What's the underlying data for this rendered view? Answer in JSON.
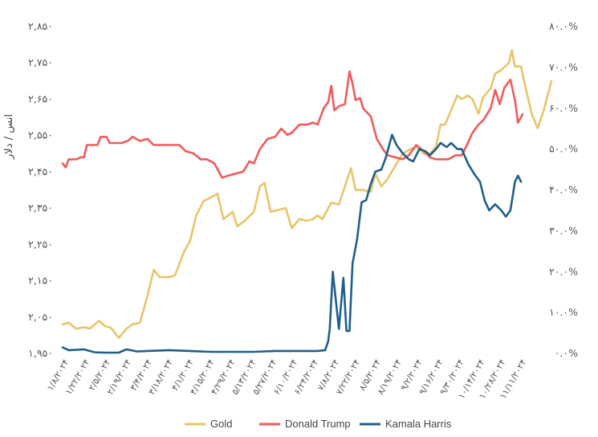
{
  "chart_data": {
    "type": "line",
    "ylabel": "انس / دلار",
    "y_left_ticks": [
      "۱,۹۵۰",
      "۲,۰۵۰",
      "۲,۱۵۰",
      "۲,۲۵۰",
      "۲,۳۵۰",
      "۲,۴۵۰",
      "۲,۵۵۰",
      "۲,۶۵۰",
      "۲,۷۵۰",
      "۲,۸۵۰"
    ],
    "y_left_range": [
      1950,
      2850
    ],
    "y_right_ticks": [
      "۰.۰%",
      "۱۰.۰%",
      "۲۰.۰%",
      "۳۰.۰%",
      "۴۰.۰%",
      "۵۰.۰%",
      "۶۰.۰%",
      "۷۰.۰%",
      "۸۰.۰%"
    ],
    "y_right_range": [
      0,
      80
    ],
    "x_ticks": [
      "۱/۸/۲۰۲۴",
      "۱/۲۲/۲۰۲۴",
      "۲/۵/۲۰۲۴",
      "۲/۱۹/۲۰۲۴",
      "۳/۴/۲۰۲۴",
      "۳/۱۸/۲۰۲۴",
      "۴/۱/۲۰۲۴",
      "۴/۱۵/۲۰۲۴",
      "۴/۲۹/۲۰۲۴",
      "۵/۱۳/۲۰۲۴",
      "۵/۲۷/۲۰۲۴",
      "۶/۱۰/۲۰۲۴",
      "۶/۲۴/۲۰۲۴",
      "۷/۸/۲۰۲۴",
      "۷/۲۲/۲۰۲۴",
      "۸/۵/۲۰۲۴",
      "۸/۱۹/۲۰۲۴",
      "۹/۲/۲۰۲۴",
      "۹/۱۶/۲۰۲۴",
      "۹/۳۰/۲۰۲۴",
      "۱۰/۱۴/۲۰۲۴",
      "۱۰/۲۸/۲۰۲۴",
      "۱۱/۱۱/۲۰۲۴"
    ],
    "x_range": [
      "2024-01-08",
      "2024-11-15"
    ],
    "grid": false,
    "legend_position": "bottom",
    "series": [
      {
        "name": "Gold",
        "axis": "left",
        "color": "#E9C46A",
        "points": [
          [
            "2024-01-08",
            2030
          ],
          [
            "2024-01-12",
            2035
          ],
          [
            "2024-01-17",
            2018
          ],
          [
            "2024-01-22",
            2022
          ],
          [
            "2024-01-26",
            2018
          ],
          [
            "2024-02-01",
            2040
          ],
          [
            "2024-02-05",
            2025
          ],
          [
            "2024-02-09",
            2020
          ],
          [
            "2024-02-14",
            1993
          ],
          [
            "2024-02-19",
            2018
          ],
          [
            "2024-02-23",
            2030
          ],
          [
            "2024-02-28",
            2035
          ],
          [
            "2024-03-04",
            2110
          ],
          [
            "2024-03-08",
            2180
          ],
          [
            "2024-03-12",
            2160
          ],
          [
            "2024-03-18",
            2160
          ],
          [
            "2024-03-22",
            2165
          ],
          [
            "2024-03-28",
            2230
          ],
          [
            "2024-04-01",
            2260
          ],
          [
            "2024-04-05",
            2330
          ],
          [
            "2024-04-10",
            2370
          ],
          [
            "2024-04-15",
            2380
          ],
          [
            "2024-04-19",
            2390
          ],
          [
            "2024-04-23",
            2320
          ],
          [
            "2024-04-29",
            2340
          ],
          [
            "2024-05-02",
            2300
          ],
          [
            "2024-05-07",
            2315
          ],
          [
            "2024-05-13",
            2340
          ],
          [
            "2024-05-17",
            2410
          ],
          [
            "2024-05-20",
            2420
          ],
          [
            "2024-05-24",
            2340
          ],
          [
            "2024-05-29",
            2345
          ],
          [
            "2024-06-03",
            2350
          ],
          [
            "2024-06-07",
            2295
          ],
          [
            "2024-06-12",
            2320
          ],
          [
            "2024-06-17",
            2315
          ],
          [
            "2024-06-21",
            2320
          ],
          [
            "2024-06-24",
            2330
          ],
          [
            "2024-06-27",
            2320
          ],
          [
            "2024-07-03",
            2365
          ],
          [
            "2024-07-08",
            2360
          ],
          [
            "2024-07-12",
            2410
          ],
          [
            "2024-07-16",
            2460
          ],
          [
            "2024-07-19",
            2400
          ],
          [
            "2024-07-24",
            2400
          ],
          [
            "2024-07-29",
            2395
          ],
          [
            "2024-08-01",
            2445
          ],
          [
            "2024-08-05",
            2410
          ],
          [
            "2024-08-09",
            2430
          ],
          [
            "2024-08-14",
            2465
          ],
          [
            "2024-08-19",
            2500
          ],
          [
            "2024-08-23",
            2510
          ],
          [
            "2024-08-28",
            2520
          ],
          [
            "2024-09-02",
            2500
          ],
          [
            "2024-09-06",
            2500
          ],
          [
            "2024-09-10",
            2520
          ],
          [
            "2024-09-13",
            2580
          ],
          [
            "2024-09-16",
            2580
          ],
          [
            "2024-09-20",
            2620
          ],
          [
            "2024-09-24",
            2660
          ],
          [
            "2024-09-27",
            2650
          ],
          [
            "2024-10-01",
            2660
          ],
          [
            "2024-10-04",
            2650
          ],
          [
            "2024-10-08",
            2610
          ],
          [
            "2024-10-11",
            2655
          ],
          [
            "2024-10-16",
            2680
          ],
          [
            "2024-10-19",
            2720
          ],
          [
            "2024-10-23",
            2730
          ],
          [
            "2024-10-28",
            2750
          ],
          [
            "2024-10-30",
            2785
          ],
          [
            "2024-11-01",
            2740
          ],
          [
            "2024-11-05",
            2740
          ],
          [
            "2024-11-07",
            2700
          ],
          [
            "2024-11-12",
            2610
          ],
          [
            "2024-11-16",
            2570
          ],
          [
            "2024-11-20",
            2620
          ],
          [
            "2024-11-25",
            2700
          ]
        ]
      },
      {
        "name": "Donald Trump",
        "axis": "right",
        "color": "#EF5B5B",
        "points": [
          [
            "2024-01-08",
            46.5
          ],
          [
            "2024-01-10",
            45.5
          ],
          [
            "2024-01-12",
            47.5
          ],
          [
            "2024-01-17",
            47.5
          ],
          [
            "2024-01-20",
            48.0
          ],
          [
            "2024-01-22",
            48.0
          ],
          [
            "2024-01-24",
            51.0
          ],
          [
            "2024-01-31",
            51.0
          ],
          [
            "2024-02-02",
            53.0
          ],
          [
            "2024-02-06",
            53.0
          ],
          [
            "2024-02-08",
            51.5
          ],
          [
            "2024-02-16",
            51.5
          ],
          [
            "2024-02-20",
            52.0
          ],
          [
            "2024-02-23",
            53.0
          ],
          [
            "2024-02-28",
            52.0
          ],
          [
            "2024-03-04",
            52.5
          ],
          [
            "2024-03-08",
            51.0
          ],
          [
            "2024-03-18",
            51.0
          ],
          [
            "2024-03-25",
            51.0
          ],
          [
            "2024-03-29",
            49.5
          ],
          [
            "2024-04-03",
            49.0
          ],
          [
            "2024-04-08",
            47.5
          ],
          [
            "2024-04-12",
            47.5
          ],
          [
            "2024-04-17",
            46.5
          ],
          [
            "2024-04-22",
            43.0
          ],
          [
            "2024-04-26",
            43.5
          ],
          [
            "2024-05-01",
            44.0
          ],
          [
            "2024-05-06",
            44.5
          ],
          [
            "2024-05-10",
            47.0
          ],
          [
            "2024-05-13",
            46.5
          ],
          [
            "2024-05-17",
            50.0
          ],
          [
            "2024-05-22",
            52.5
          ],
          [
            "2024-05-27",
            53.0
          ],
          [
            "2024-05-31",
            55.0
          ],
          [
            "2024-06-04",
            53.5
          ],
          [
            "2024-06-07",
            54.0
          ],
          [
            "2024-06-12",
            56.0
          ],
          [
            "2024-06-17",
            56.0
          ],
          [
            "2024-06-21",
            56.5
          ],
          [
            "2024-06-24",
            56.0
          ],
          [
            "2024-06-28",
            60.0
          ],
          [
            "2024-07-01",
            61.5
          ],
          [
            "2024-07-03",
            65.5
          ],
          [
            "2024-07-05",
            59.5
          ],
          [
            "2024-07-08",
            60.5
          ],
          [
            "2024-07-12",
            61.0
          ],
          [
            "2024-07-15",
            69.0
          ],
          [
            "2024-07-17",
            66.0
          ],
          [
            "2024-07-19",
            62.0
          ],
          [
            "2024-07-22",
            62.5
          ],
          [
            "2024-07-24",
            60.0
          ],
          [
            "2024-07-29",
            58.0
          ],
          [
            "2024-08-02",
            52.5
          ],
          [
            "2024-08-06",
            50.0
          ],
          [
            "2024-08-09",
            48.5
          ],
          [
            "2024-08-14",
            48.0
          ],
          [
            "2024-08-19",
            47.5
          ],
          [
            "2024-08-23",
            48.5
          ],
          [
            "2024-08-28",
            51.0
          ],
          [
            "2024-09-02",
            49.5
          ],
          [
            "2024-09-06",
            48.0
          ],
          [
            "2024-09-10",
            47.5
          ],
          [
            "2024-09-14",
            47.5
          ],
          [
            "2024-09-18",
            47.5
          ],
          [
            "2024-09-23",
            48.5
          ],
          [
            "2024-09-27",
            48.5
          ],
          [
            "2024-10-01",
            51.5
          ],
          [
            "2024-10-04",
            54.0
          ],
          [
            "2024-10-08",
            56.0
          ],
          [
            "2024-10-11",
            57.0
          ],
          [
            "2024-10-16",
            60.0
          ],
          [
            "2024-10-19",
            64.5
          ],
          [
            "2024-10-22",
            61.0
          ],
          [
            "2024-10-25",
            65.0
          ],
          [
            "2024-10-29",
            67.0
          ],
          [
            "2024-11-01",
            62.0
          ],
          [
            "2024-11-03",
            56.5
          ],
          [
            "2024-11-06",
            58.5
          ]
        ]
      },
      {
        "name": "Kamala Harris",
        "axis": "right",
        "color": "#1F5F8B",
        "points": [
          [
            "2024-01-08",
            1.5
          ],
          [
            "2024-01-12",
            0.8
          ],
          [
            "2024-01-22",
            1.0
          ],
          [
            "2024-01-29",
            0.3
          ],
          [
            "2024-02-05",
            0.2
          ],
          [
            "2024-02-14",
            0.2
          ],
          [
            "2024-02-19",
            1.0
          ],
          [
            "2024-02-26",
            0.5
          ],
          [
            "2024-03-04",
            0.6
          ],
          [
            "2024-03-18",
            0.8
          ],
          [
            "2024-04-01",
            0.6
          ],
          [
            "2024-04-15",
            0.4
          ],
          [
            "2024-04-29",
            0.4
          ],
          [
            "2024-05-13",
            0.4
          ],
          [
            "2024-05-27",
            0.6
          ],
          [
            "2024-06-10",
            0.6
          ],
          [
            "2024-06-24",
            0.6
          ],
          [
            "2024-06-29",
            0.8
          ],
          [
            "2024-07-01",
            3.0
          ],
          [
            "2024-07-02",
            6.0
          ],
          [
            "2024-07-04",
            20.0
          ],
          [
            "2024-07-06",
            13.0
          ],
          [
            "2024-07-08",
            6.0
          ],
          [
            "2024-07-11",
            18.5
          ],
          [
            "2024-07-13",
            5.5
          ],
          [
            "2024-07-15",
            5.5
          ],
          [
            "2024-07-17",
            22.0
          ],
          [
            "2024-07-20",
            28.0
          ],
          [
            "2024-07-23",
            37.0
          ],
          [
            "2024-07-26",
            37.5
          ],
          [
            "2024-07-29",
            41.5
          ],
          [
            "2024-08-01",
            44.5
          ],
          [
            "2024-08-05",
            45.0
          ],
          [
            "2024-08-08",
            48.0
          ],
          [
            "2024-08-12",
            53.5
          ],
          [
            "2024-08-15",
            51.0
          ],
          [
            "2024-08-19",
            49.0
          ],
          [
            "2024-08-23",
            47.5
          ],
          [
            "2024-08-26",
            47.0
          ],
          [
            "2024-08-30",
            50.0
          ],
          [
            "2024-09-03",
            49.5
          ],
          [
            "2024-09-06",
            48.5
          ],
          [
            "2024-09-10",
            50.0
          ],
          [
            "2024-09-13",
            51.5
          ],
          [
            "2024-09-17",
            50.5
          ],
          [
            "2024-09-20",
            51.5
          ],
          [
            "2024-09-24",
            50.0
          ],
          [
            "2024-09-27",
            50.0
          ],
          [
            "2024-10-01",
            46.5
          ],
          [
            "2024-10-05",
            44.0
          ],
          [
            "2024-10-09",
            42.0
          ],
          [
            "2024-10-12",
            37.5
          ],
          [
            "2024-10-15",
            35.0
          ],
          [
            "2024-10-19",
            36.5
          ],
          [
            "2024-10-23",
            35.0
          ],
          [
            "2024-10-26",
            33.5
          ],
          [
            "2024-10-29",
            35.0
          ],
          [
            "2024-11-01",
            42.0
          ],
          [
            "2024-11-03",
            43.5
          ],
          [
            "2024-11-05",
            42.0
          ]
        ]
      }
    ]
  }
}
